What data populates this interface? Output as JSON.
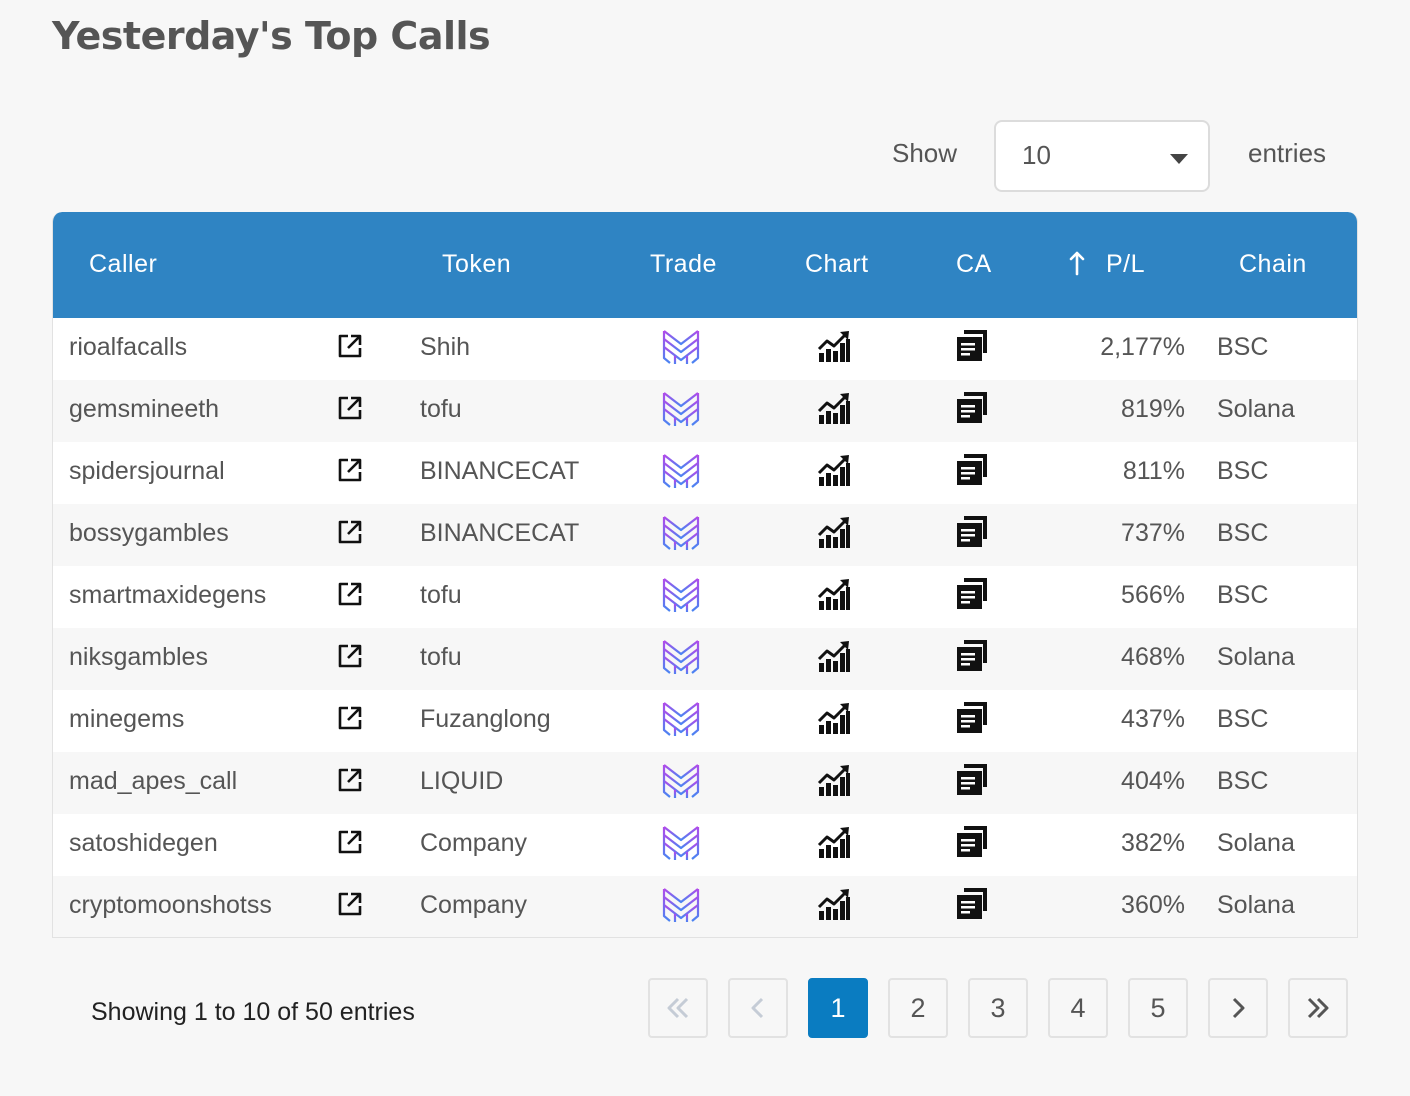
{
  "page": {
    "title": "Yesterday's Top Calls"
  },
  "length": {
    "show_label": "Show",
    "selected": "10",
    "entries_label": "entries"
  },
  "table": {
    "headers": {
      "caller": "Caller",
      "token": "Token",
      "trade": "Trade",
      "chart": "Chart",
      "ca": "CA",
      "pl": "P/L",
      "chain": "Chain"
    },
    "sort": {
      "column": "P/L",
      "icon": "sort-arrow-icon"
    },
    "rows": [
      {
        "caller": "rioalfacalls",
        "token": "Shih",
        "pl": "2,177%",
        "chain": "BSC"
      },
      {
        "caller": "gemsmineeth",
        "token": "tofu",
        "pl": "819%",
        "chain": "Solana"
      },
      {
        "caller": "spidersjournal",
        "token": "BINANCECAT",
        "pl": "811%",
        "chain": "BSC"
      },
      {
        "caller": "bossygambles",
        "token": "BINANCECAT",
        "pl": "737%",
        "chain": "BSC"
      },
      {
        "caller": "smartmaxidegens",
        "token": "tofu",
        "pl": "566%",
        "chain": "BSC"
      },
      {
        "caller": "niksgambles",
        "token": "tofu",
        "pl": "468%",
        "chain": "Solana"
      },
      {
        "caller": "minegems",
        "token": "Fuzanglong",
        "pl": "437%",
        "chain": "BSC"
      },
      {
        "caller": "mad_apes_call",
        "token": "LIQUID",
        "pl": "404%",
        "chain": "BSC"
      },
      {
        "caller": "satoshidegen",
        "token": "Company",
        "pl": "382%",
        "chain": "Solana"
      },
      {
        "caller": "cryptomoonshotss",
        "token": "Company",
        "pl": "360%",
        "chain": "Solana"
      }
    ],
    "row_icons": {
      "caller_link": "external-link-icon",
      "trade": "trade-logo-icon",
      "chart": "chart-icon",
      "ca": "copy-icon"
    }
  },
  "info": "Showing 1 to 10 of 50 entries",
  "pagination": {
    "first_icon": "double-chevron-left-icon",
    "prev_icon": "chevron-left-icon",
    "pages": [
      "1",
      "2",
      "3",
      "4",
      "5"
    ],
    "current": "1",
    "next_icon": "chevron-right-icon",
    "last_icon": "double-chevron-right-icon"
  },
  "colors": {
    "header_bg": "#2f84c3",
    "active_page": "#0a7cc1",
    "trade_logo_top": "#b14bea",
    "trade_logo_bottom": "#4a84f2"
  }
}
